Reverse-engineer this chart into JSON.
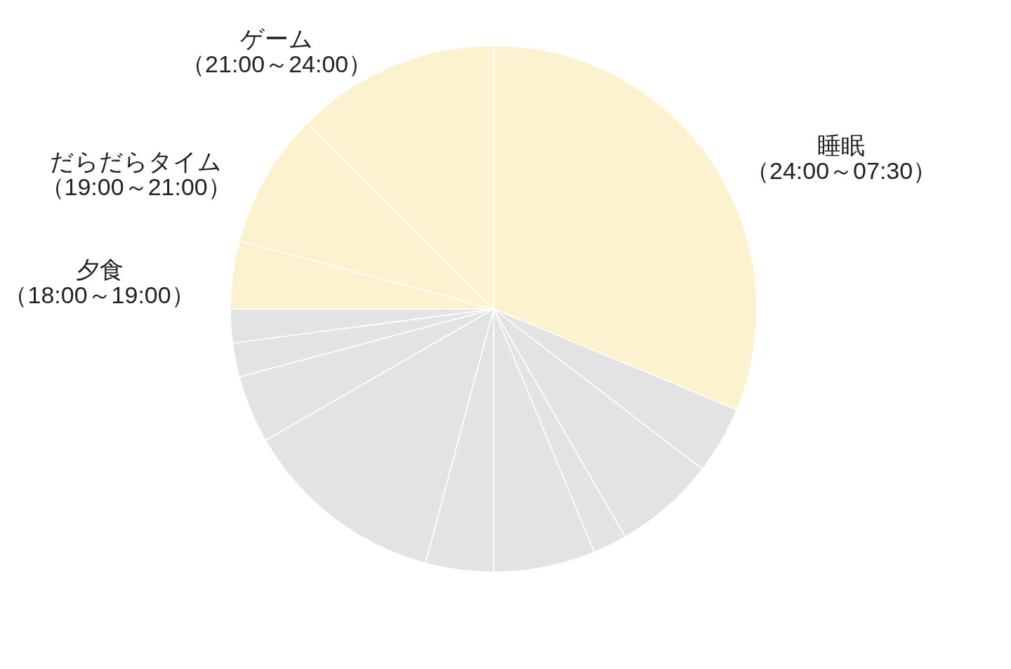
{
  "chart_data": {
    "type": "pie",
    "categories": [
      "睡眠（24:00～07:30）",
      null,
      null,
      null,
      null,
      null,
      null,
      null,
      null,
      null,
      "夕食（18:00～19:00）",
      "だらだらタイム（19:00～21:00）",
      "ゲーム（21:00～24:00）"
    ],
    "values": [
      31.25,
      4.17,
      6.25,
      2.08,
      6.25,
      4.17,
      12.5,
      4.17,
      2.08,
      2.08,
      4.17,
      8.33,
      12.5
    ],
    "colors": [
      "#fdf2d0",
      "#e3e3e3",
      "#e3e3e3",
      "#e3e3e3",
      "#e3e3e3",
      "#e3e3e3",
      "#e3e3e3",
      "#e3e3e3",
      "#e3e3e3",
      "#e3e3e3",
      "#fdf2d0",
      "#fdf2d0",
      "#fdf2d0"
    ],
    "legend": false
  }
}
